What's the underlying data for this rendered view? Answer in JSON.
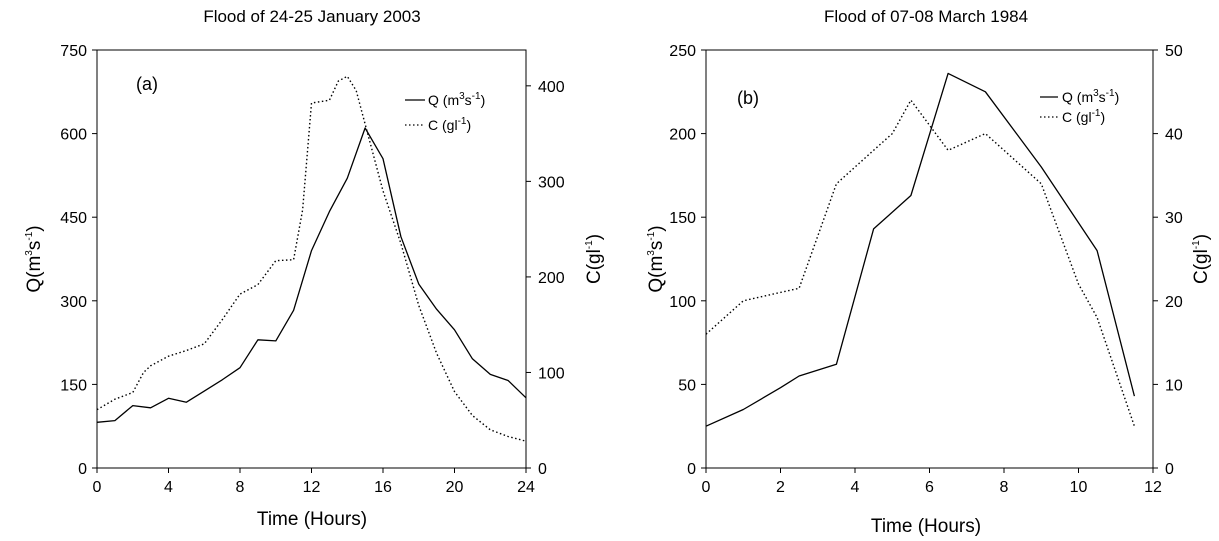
{
  "chart_data": [
    {
      "type": "line",
      "title": "Flood of 24-25 January 2003",
      "panel_label": "(a)",
      "xlabel": "Time (Hours)",
      "xlim": [
        0,
        24
      ],
      "xticks": [
        "0",
        "4",
        "8",
        "12",
        "16",
        "20",
        "24"
      ],
      "y_left": {
        "label_base": "Q(m",
        "label_sup1": "3",
        "label_mid": "s",
        "label_sup2": "-1",
        "label_end": ")",
        "lim": [
          0,
          750
        ],
        "ticks": [
          "0",
          "150",
          "300",
          "450",
          "600",
          "750"
        ]
      },
      "y_right": {
        "label_base": "C(gl",
        "label_sup": "-1",
        "label_end": ")",
        "lim": [
          0,
          437.5
        ],
        "ticks": [
          "0",
          "100",
          "200",
          "300",
          "400"
        ]
      },
      "legend": {
        "placement": "top-right",
        "q": {
          "base": "Q (m",
          "sup1": "3",
          "mid": "s",
          "sup2": "-1",
          "end": ")"
        },
        "c": {
          "base": "C (gl",
          "sup": "-1",
          "end": ")"
        }
      },
      "series": [
        {
          "id": "Q",
          "axis": "left",
          "style": "solid",
          "x": [
            0,
            1,
            2,
            3,
            4,
            5,
            6,
            7,
            8,
            9,
            10,
            11,
            12,
            13,
            14,
            15,
            16,
            17,
            18,
            19,
            20,
            21,
            22,
            23,
            24
          ],
          "values": [
            82,
            85,
            112,
            108,
            125,
            118,
            138,
            158,
            180,
            230,
            228,
            283,
            390,
            460,
            520,
            610,
            555,
            415,
            330,
            285,
            248,
            196,
            168,
            157,
            126
          ]
        },
        {
          "id": "C",
          "axis": "right",
          "style": "dotted",
          "x": [
            0,
            1,
            2,
            2.6,
            3,
            4,
            5,
            6,
            7,
            8,
            9,
            10,
            11,
            11.5,
            12,
            13,
            13.5,
            14,
            14.5,
            15,
            16,
            17,
            18,
            19,
            20,
            21,
            22,
            23,
            24
          ],
          "values": [
            61,
            72,
            79,
            100,
            107,
            117,
            123,
            130,
            155,
            182,
            192,
            217,
            218,
            270,
            382,
            385,
            405,
            410,
            395,
            360,
            290,
            235,
            170,
            120,
            80,
            55,
            40,
            33,
            28
          ]
        }
      ]
    },
    {
      "type": "line",
      "title": "Flood of 07-08 March 1984",
      "panel_label": "(b)",
      "xlabel": "Time (Hours)",
      "xlim": [
        0,
        12
      ],
      "xticks": [
        "0",
        "2",
        "4",
        "6",
        "8",
        "10",
        "12"
      ],
      "y_left": {
        "label_base": "Q(m",
        "label_sup1": "3",
        "label_mid": "s",
        "label_sup2": "-1",
        "label_end": ")",
        "lim": [
          0,
          250
        ],
        "ticks": [
          "0",
          "50",
          "100",
          "150",
          "200",
          "250"
        ]
      },
      "y_right": {
        "label_base": "C(gl",
        "label_sup": "-1",
        "label_end": ")",
        "lim": [
          0,
          50
        ],
        "ticks": [
          "0",
          "10",
          "20",
          "30",
          "40",
          "50"
        ]
      },
      "legend": {
        "placement": "top-right",
        "q": {
          "base": "Q (m",
          "sup1": "3",
          "mid": "s",
          "sup2": "-1",
          "end": ")"
        },
        "c": {
          "base": "C (gl",
          "sup": "-1",
          "end": ")"
        }
      },
      "series": [
        {
          "id": "Q",
          "axis": "left",
          "style": "solid",
          "x": [
            0,
            1,
            2,
            2.5,
            3.5,
            4.5,
            5.5,
            6.5,
            7.5,
            9,
            10.5,
            11.5
          ],
          "values": [
            25,
            35,
            48,
            55,
            62,
            143,
            163,
            236,
            225,
            180,
            130,
            43
          ]
        },
        {
          "id": "C",
          "axis": "right",
          "style": "dotted",
          "x": [
            0,
            1,
            2,
            2.5,
            3.5,
            4.5,
            5,
            5.5,
            6.5,
            7.5,
            8,
            9,
            10,
            10.5,
            11.5
          ],
          "values": [
            16,
            20,
            21,
            21.5,
            34,
            38,
            40,
            44,
            38,
            40,
            38,
            34,
            22,
            18,
            5
          ]
        }
      ]
    }
  ]
}
